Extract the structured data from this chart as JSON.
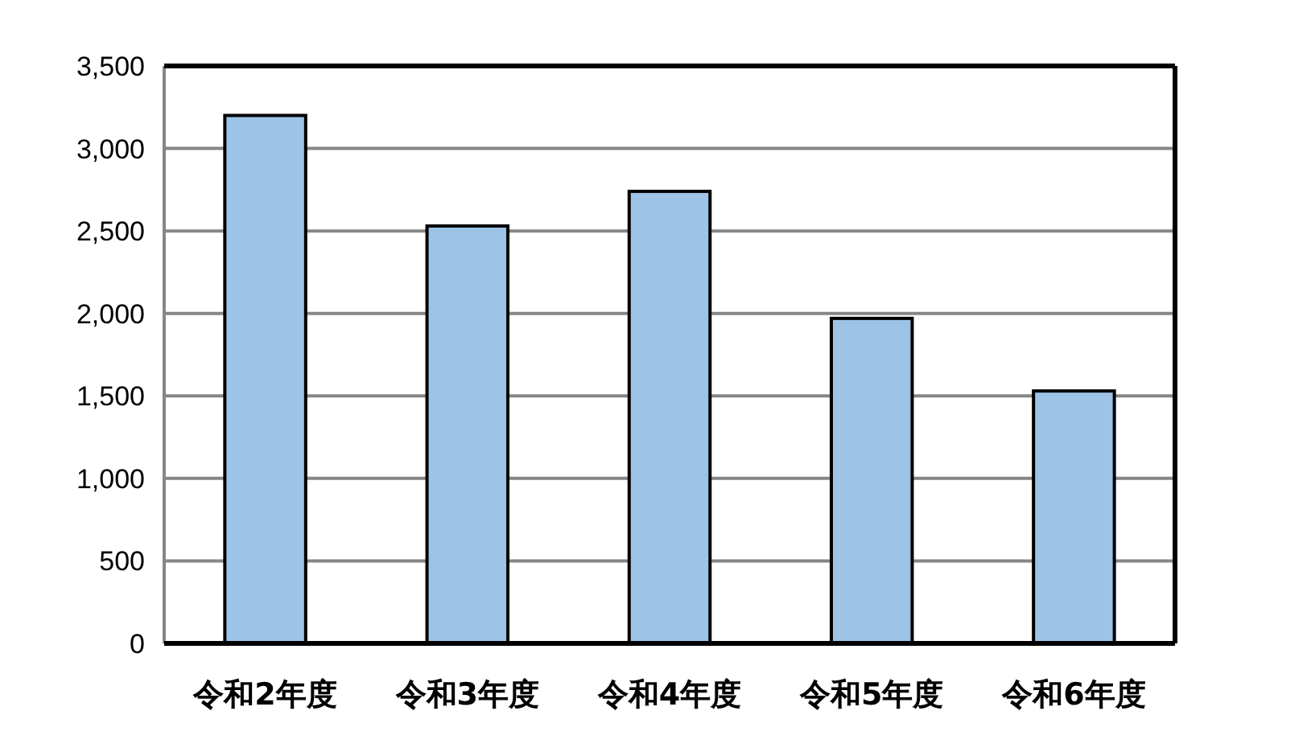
{
  "chart_data": {
    "type": "bar",
    "categories": [
      "令和2年度",
      "令和3年度",
      "令和4年度",
      "令和5年度",
      "令和6年度"
    ],
    "values": [
      3200,
      2530,
      2740,
      1970,
      1530
    ],
    "color": "#9dc3e6",
    "ylim": [
      0,
      3500
    ],
    "yticks": [
      {
        "value": 0,
        "label": "0"
      },
      {
        "value": 500,
        "label": "500"
      },
      {
        "value": 1000,
        "label": "1,000"
      },
      {
        "value": 1500,
        "label": "1,500"
      },
      {
        "value": 2000,
        "label": "2,000"
      },
      {
        "value": 2500,
        "label": "2,500"
      },
      {
        "value": 3000,
        "label": "3,000"
      },
      {
        "value": 3500,
        "label": "3,500"
      }
    ],
    "grid": "y"
  }
}
